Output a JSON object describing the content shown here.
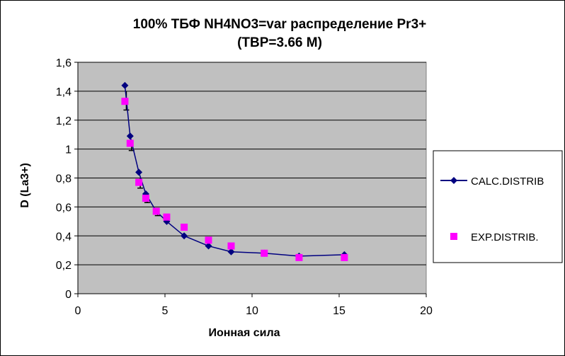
{
  "chart_data": {
    "type": "line",
    "title_line1": "100%  ТБФ  NH4NO3=var распределение Pr3+",
    "title_line2": "(TBP=3.66 M)",
    "xlabel": "Ионная  сила",
    "ylabel": "D (La3+)",
    "xlim": [
      0,
      20
    ],
    "ylim": [
      0,
      1.6
    ],
    "x_ticks": [
      0,
      5,
      10,
      15,
      20
    ],
    "x_tick_labels": [
      "0",
      "5",
      "10",
      "15",
      "20"
    ],
    "y_ticks": [
      0,
      0.2,
      0.4,
      0.6,
      0.8,
      1,
      1.2,
      1.4,
      1.6
    ],
    "y_tick_labels": [
      "0",
      "0,2",
      "0,4",
      "0,6",
      "0,8",
      "1",
      "1,2",
      "1,4",
      "1,6"
    ],
    "grid": "horizontal",
    "legend_position": "right",
    "plot_background": "#c0c0c0",
    "series": [
      {
        "name": "CALC.DISTRIB",
        "color": "#000080",
        "marker": "diamond",
        "line": true,
        "x": [
          2.7,
          3.0,
          3.5,
          3.9,
          4.5,
          5.1,
          6.1,
          7.5,
          8.8,
          10.7,
          12.7,
          15.3
        ],
        "y": [
          1.44,
          1.09,
          0.84,
          0.69,
          0.57,
          0.5,
          0.4,
          0.33,
          0.29,
          0.28,
          0.26,
          0.27
        ]
      },
      {
        "name": "EXP.DISTRIB.",
        "color": "#ff00ff",
        "marker": "square",
        "line": false,
        "x": [
          2.7,
          3.0,
          3.5,
          3.9,
          4.5,
          5.1,
          6.1,
          7.5,
          8.8,
          10.7,
          12.7,
          15.3
        ],
        "y": [
          1.33,
          1.04,
          0.77,
          0.66,
          0.57,
          0.53,
          0.46,
          0.37,
          0.33,
          0.28,
          0.25,
          0.25
        ]
      }
    ],
    "error_bars": {
      "series": "EXP.DISTRIB.",
      "x": [
        2.7,
        3.0,
        3.5,
        3.9,
        4.5
      ],
      "low": [
        1.27,
        0.99,
        0.73,
        0.63,
        0.54
      ],
      "high": [
        1.4,
        1.05,
        0.8,
        0.68,
        0.58
      ]
    }
  }
}
